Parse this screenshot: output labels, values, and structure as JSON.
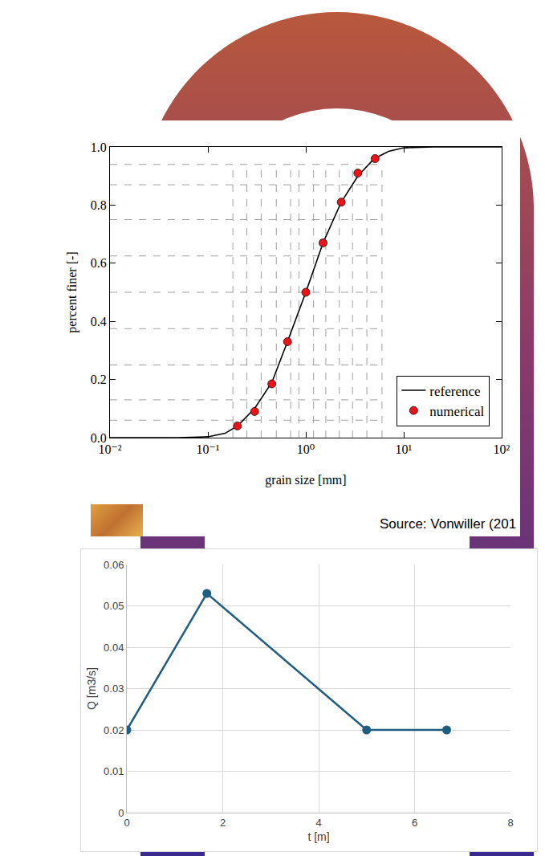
{
  "chart_data": [
    {
      "type": "line",
      "x_label": "grain size [mm]",
      "y_label": "percent finer [-]",
      "log": "x",
      "xlim": [
        0.01,
        100
      ],
      "xticks": [
        {
          "value": 0.01,
          "label": "10⁻²"
        },
        {
          "value": 0.1,
          "label": "10⁻¹"
        },
        {
          "value": 1,
          "label": "10⁰"
        },
        {
          "value": 10,
          "label": "10¹"
        },
        {
          "value": 100,
          "label": "10²"
        }
      ],
      "ylim": [
        0,
        1
      ],
      "yticks": [
        {
          "value": 0,
          "label": "0.0"
        },
        0.2,
        0.4,
        0.6,
        0.8,
        {
          "value": 1,
          "label": "1.0"
        }
      ],
      "legend": "lower right",
      "series": [
        {
          "name": "reference",
          "type": "line",
          "color": "#000000",
          "x": [
            0.01,
            0.05,
            0.1,
            0.15,
            0.2,
            0.3,
            0.45,
            0.65,
            1.0,
            1.5,
            2.3,
            3.4,
            5.0,
            7.0,
            10.0,
            20.0,
            100.0
          ],
          "values": [
            0,
            0,
            0.003,
            0.015,
            0.04,
            0.1,
            0.19,
            0.33,
            0.5,
            0.67,
            0.81,
            0.9,
            0.96,
            0.985,
            0.997,
            1.0,
            1.0
          ]
        },
        {
          "name": "numerical",
          "type": "scatter",
          "marker": "circle",
          "color": "#e8141a",
          "x": [
            0.2,
            0.3,
            0.45,
            0.65,
            1.0,
            1.5,
            2.3,
            3.4,
            5.1
          ],
          "values": [
            0.04,
            0.09,
            0.185,
            0.33,
            0.5,
            0.67,
            0.81,
            0.91,
            0.96
          ]
        }
      ],
      "guide_x": [
        0.18,
        0.25,
        0.35,
        0.5,
        0.7,
        0.85,
        1.2,
        1.6,
        2.2,
        3.0,
        4.2,
        6.0
      ],
      "guide_y": [
        0.06,
        0.13,
        0.25,
        0.375,
        0.5,
        0.625,
        0.75,
        0.87,
        0.94
      ],
      "annotations": [
        "Source: Vonwiller (201"
      ]
    },
    {
      "type": "line",
      "x_label": "t [m]",
      "y_label": "Q [m3/s]",
      "x": [
        0,
        1.67,
        5,
        6.67
      ],
      "values": [
        0.02,
        0.053,
        0.02,
        0.02
      ],
      "color": "#1f5e80",
      "marker": "circle",
      "xlim": [
        0,
        8
      ],
      "xticks": [
        0,
        2,
        4,
        6,
        8
      ],
      "ylim": [
        0,
        0.06
      ],
      "yticks": [
        0,
        0.01,
        0.02,
        0.03,
        0.04,
        0.05,
        0.06
      ],
      "grid": true
    }
  ]
}
